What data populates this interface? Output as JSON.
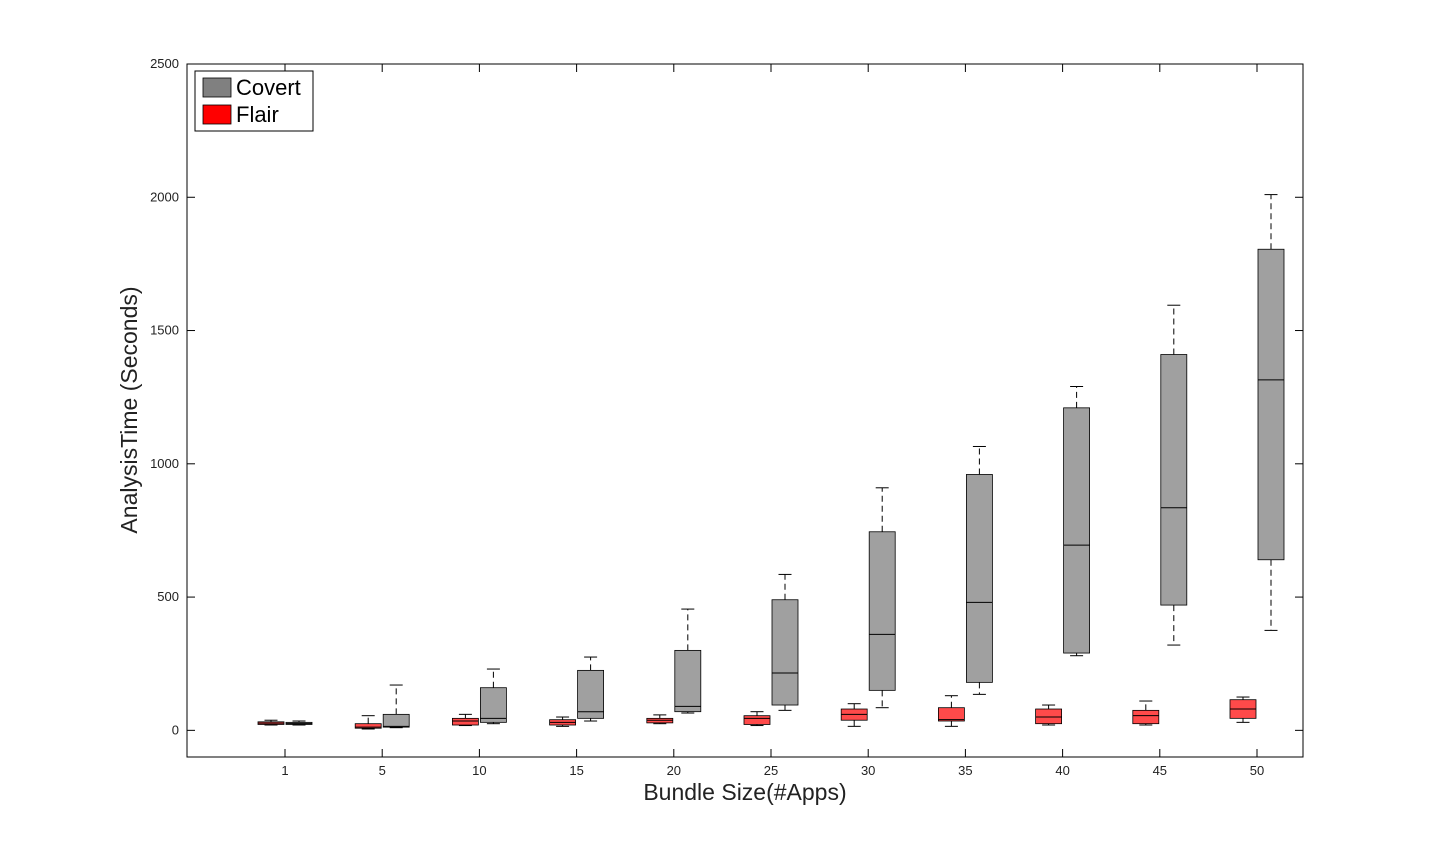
{
  "chart_data": {
    "type": "box",
    "title": "",
    "xlabel": "Bundle Size(#Apps)",
    "ylabel": "AnalysisTime (Seconds)",
    "ylim": [
      -100,
      2500
    ],
    "yticks": [
      0,
      500,
      1000,
      1500,
      2000,
      2500
    ],
    "categories": [
      "1",
      "5",
      "10",
      "15",
      "20",
      "25",
      "30",
      "35",
      "40",
      "45",
      "50"
    ],
    "legend_position": "top-left",
    "series": [
      {
        "name": "Covert",
        "color": "#a0a0a0",
        "legend_color": "#808080",
        "boxes": [
          {
            "min": 20,
            "q1": 22,
            "median": 25,
            "q3": 30,
            "max": 35
          },
          {
            "min": 10,
            "q1": 12,
            "median": 15,
            "q3": 60,
            "max": 170
          },
          {
            "min": 25,
            "q1": 30,
            "median": 45,
            "q3": 160,
            "max": 230
          },
          {
            "min": 35,
            "q1": 45,
            "median": 70,
            "q3": 225,
            "max": 275
          },
          {
            "min": 65,
            "q1": 70,
            "median": 90,
            "q3": 300,
            "max": 455
          },
          {
            "min": 75,
            "q1": 95,
            "median": 215,
            "q3": 490,
            "max": 585
          },
          {
            "min": 85,
            "q1": 150,
            "median": 360,
            "q3": 745,
            "max": 910
          },
          {
            "min": 135,
            "q1": 180,
            "median": 480,
            "q3": 960,
            "max": 1065
          },
          {
            "min": 280,
            "q1": 290,
            "median": 695,
            "q3": 1210,
            "max": 1290
          },
          {
            "min": 320,
            "q1": 470,
            "median": 835,
            "q3": 1410,
            "max": 1595
          },
          {
            "min": 375,
            "q1": 640,
            "median": 1315,
            "q3": 1805,
            "max": 2010
          }
        ]
      },
      {
        "name": "Flair",
        "color": "#ff4a4a",
        "legend_color": "#ff0000",
        "boxes": [
          {
            "min": 20,
            "q1": 22,
            "median": 27,
            "q3": 32,
            "max": 38
          },
          {
            "min": 5,
            "q1": 8,
            "median": 12,
            "q3": 25,
            "max": 55
          },
          {
            "min": 18,
            "q1": 20,
            "median": 35,
            "q3": 45,
            "max": 60
          },
          {
            "min": 15,
            "q1": 20,
            "median": 30,
            "q3": 40,
            "max": 50
          },
          {
            "min": 25,
            "q1": 28,
            "median": 38,
            "q3": 45,
            "max": 58
          },
          {
            "min": 18,
            "q1": 22,
            "median": 45,
            "q3": 55,
            "max": 70
          },
          {
            "min": 15,
            "q1": 38,
            "median": 60,
            "q3": 80,
            "max": 100
          },
          {
            "min": 15,
            "q1": 35,
            "median": 40,
            "q3": 85,
            "max": 130
          },
          {
            "min": 20,
            "q1": 25,
            "median": 50,
            "q3": 80,
            "max": 95
          },
          {
            "min": 20,
            "q1": 25,
            "median": 55,
            "q3": 75,
            "max": 110
          },
          {
            "min": 30,
            "q1": 45,
            "median": 80,
            "q3": 115,
            "max": 125
          }
        ]
      }
    ]
  }
}
